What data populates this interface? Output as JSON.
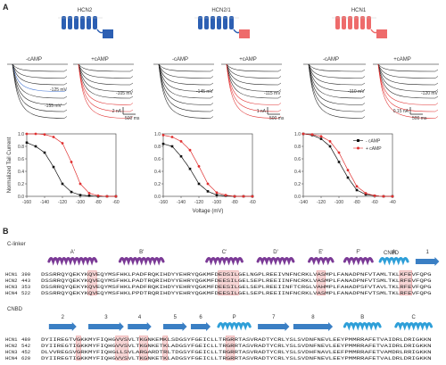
{
  "panel_a": {
    "label": "A",
    "constructs": [
      {
        "name": "HCN2",
        "tm_color": "#2c5fb3",
        "cnbd_color": "#2c5fb3"
      },
      {
        "name": "HCN2/1",
        "tm_color": "#2c5fb3",
        "cnbd_color": "#ee6b6b"
      },
      {
        "name": "HCN1",
        "tm_color": "#ee6b6b",
        "cnbd_color": "#ee6b6b"
      }
    ],
    "conditions": [
      "-cAMP",
      "+cAMP"
    ],
    "trace_labels": {
      "hcn2_minus": [
        "-125 mV",
        "-155 mV"
      ],
      "hcn2_plus": [
        "-105 mV"
      ],
      "hcn21_minus": [
        "-145 mV"
      ],
      "hcn21_plus": [
        "-115 mV"
      ],
      "hcn1_minus": [
        "-110 mV"
      ],
      "hcn1_plus": [
        "-120 mV"
      ]
    },
    "scale_bars": [
      {
        "amp": "2 nA",
        "time": "500 ms"
      },
      {
        "amp": "1 nA",
        "time": "500 ms"
      },
      {
        "amp": "0.15 nA",
        "time": "500 ms"
      }
    ],
    "legend": {
      "minus": "- cAMP",
      "plus": "+ cAMP"
    },
    "colors": {
      "minus": "#111111",
      "plus": "#e03030",
      "highlight": "#f3b7b7"
    }
  },
  "chart_data": [
    {
      "type": "scatter",
      "ylabel": "Normalized Tail Current",
      "xlabel": "",
      "xlim": [
        -160,
        -60
      ],
      "ylim": [
        0,
        1
      ],
      "xticks": [
        "-160",
        "-140",
        "-120",
        "-100",
        "-80",
        "-60"
      ],
      "yticks": [
        "0.0",
        "0.2",
        "0.4",
        "0.6",
        "0.8",
        "1.0"
      ],
      "x": [
        -160,
        -150,
        -140,
        -130,
        -120,
        -110,
        -100,
        -90,
        -80,
        -70,
        -60
      ],
      "series": [
        {
          "name": "- cAMP",
          "values": [
            0.86,
            0.8,
            0.7,
            0.47,
            0.2,
            0.07,
            0.02,
            0.01,
            0.0,
            0.0,
            0.0
          ]
        },
        {
          "name": "+ cAMP",
          "values": [
            1.0,
            1.0,
            0.99,
            0.95,
            0.85,
            0.55,
            0.2,
            0.05,
            0.01,
            0.0,
            0.0
          ]
        }
      ]
    },
    {
      "type": "scatter",
      "ylabel": "",
      "xlabel": "Voltage (mV)",
      "xlim": [
        -160,
        -60
      ],
      "ylim": [
        0,
        1
      ],
      "xticks": [
        "-160",
        "-140",
        "-120",
        "-100",
        "-80",
        "-60"
      ],
      "yticks": [
        "0.0",
        "0.2",
        "0.4",
        "0.6",
        "0.8",
        "1.0"
      ],
      "x": [
        -160,
        -150,
        -140,
        -130,
        -120,
        -110,
        -100,
        -90,
        -80,
        -70,
        -60
      ],
      "series": [
        {
          "name": "- cAMP",
          "values": [
            0.84,
            0.8,
            0.64,
            0.44,
            0.2,
            0.08,
            0.02,
            0.01,
            0.0,
            0.0,
            0.0
          ]
        },
        {
          "name": "+ cAMP",
          "values": [
            0.98,
            0.95,
            0.88,
            0.74,
            0.48,
            0.2,
            0.06,
            0.02,
            0.0,
            0.0,
            0.0
          ]
        }
      ]
    },
    {
      "type": "scatter",
      "ylabel": "",
      "xlabel": "",
      "xlim": [
        -140,
        -40
      ],
      "ylim": [
        0,
        1
      ],
      "xticks": [
        "-140",
        "-120",
        "-100",
        "-80",
        "-60",
        "-40"
      ],
      "yticks": [
        "0.0",
        "0.2",
        "0.4",
        "0.6",
        "0.8",
        "1.0"
      ],
      "x": [
        -140,
        -130,
        -120,
        -110,
        -100,
        -90,
        -80,
        -70,
        -60,
        -50,
        -40
      ],
      "series": [
        {
          "name": "- cAMP",
          "values": [
            1.0,
            0.98,
            0.92,
            0.8,
            0.55,
            0.3,
            0.1,
            0.03,
            0.01,
            0.0,
            0.0
          ]
        },
        {
          "name": "+ cAMP",
          "values": [
            1.0,
            0.99,
            0.96,
            0.88,
            0.7,
            0.42,
            0.16,
            0.05,
            0.01,
            0.0,
            0.0
          ]
        }
      ]
    }
  ],
  "panel_b": {
    "label": "B",
    "row1": {
      "region": "C-linker",
      "region_right": "CNBD",
      "helices": [
        "A'",
        "B'",
        "C'",
        "D'",
        "E'",
        "F'",
        "A"
      ],
      "strands": [
        "1"
      ],
      "sequences": [
        {
          "name": "HCN1",
          "start": "390",
          "seq": "DSSRRQYQEKYKQVEQYMSFHKLPADFRQKIHDYYEHRYQGKMFDEDSILGELNGPLREEIVNFNCRKLVASMPLFANADPNFVTAMLTKLKFEVFQPG"
        },
        {
          "name": "HCN2",
          "start": "443",
          "seq": "DSSRRQYQEKYKQVEQYMSFHKLPADTRQRIHDYYEHRYQGKMFDEESILGELSEPLREEIINFNCRKLVASMPLFANADPNFVTSMLTKLRFEVFQPG"
        },
        {
          "name": "HCN3",
          "start": "353",
          "seq": "DSSRRQYQEKYKQVEQYMSFHKLPADFRQKIHDYYEHRYQGKMFDEESILGELSEPLREEIINFTCRGLVAHMPLFAHADPSFVTAVLTKLRFEVFQPG"
        },
        {
          "name": "HCN4",
          "start": "522",
          "seq": "DSSRRQYQEKYKQVEQYMSFHKLPPDTRQRIHDYYEHRYQGKMFDEESILGELSEPLREEIINFNCRKLVASMPLFANADPNFVTSMLTKLRFEVFQPG"
        }
      ]
    },
    "row2": {
      "region": "CNBD",
      "strands": [
        "2",
        "3",
        "4",
        "5",
        "6",
        "7",
        "8"
      ],
      "helices": [
        "P",
        "B",
        "C"
      ],
      "sequences": [
        {
          "name": "HCN1",
          "start": "489",
          "seq": "DYIIREGTVGKKMYFIQHGVVSVLTKGNKEMKLSDGSYFGEICLLTRGRRTASVRADTYCRLYSLSVDNFNEVLEEYPMMRRAFETVAIDRLDRIGKKN"
        },
        {
          "name": "HCN2",
          "start": "542",
          "seq": "DYIIREGTIGKKMYFIQHGVVSVLTKGNKETKLADGSYFGEICLLTRGRRTASVRADTYCRLYSLSVDNFNEVLEEYPMMRRAFETVAIDRLDRIGKKN"
        },
        {
          "name": "HCN3",
          "start": "452",
          "seq": "DLVVREGSVGRKMYFIQHGLLSVLARGARDTRLTDGSYFGEICLLTRGRRTASVRADTYCRLYSLSVDHFNAVLEEFPMMRRAFETVAMDRLRRIGKKN"
        },
        {
          "name": "HCN4",
          "start": "620",
          "seq": "DYIIREGTIGKKMYFIQHGVVSVLTKGNKETKLADGSYFGEICLLTRGRRTASVRADTYCRLYSLSVDNFNEVLEEYPMMRRAFETVALDRLDRIGKKN"
        }
      ]
    },
    "colors": {
      "helix_clinker": "#7b3a96",
      "helix_cnbd": "#2e9fd8",
      "strand": "#3a7fc4",
      "region_clinker": "#7b3a96",
      "region_cnbd": "#2e9fd8",
      "box": "#e88a8a"
    }
  }
}
